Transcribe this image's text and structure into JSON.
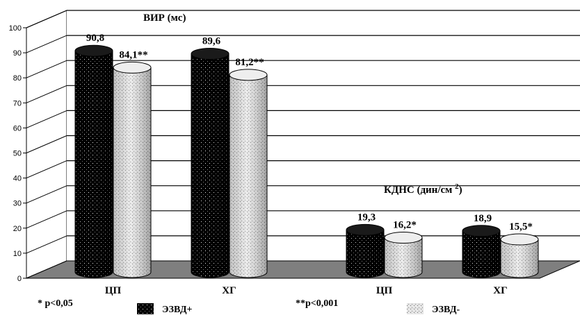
{
  "chart_data": {
    "type": "bar",
    "style": "3d-cylinder",
    "ylim": [
      0,
      100
    ],
    "yticks": [
      0,
      10,
      20,
      30,
      40,
      50,
      60,
      70,
      80,
      90,
      100
    ],
    "grid": true,
    "groups": [
      {
        "title": "ВИР (мс)"
      },
      {
        "title": "КДНС (дин/см",
        "title_sup": "2",
        "title_end": ")"
      }
    ],
    "categories": [
      "ЦП",
      "ХГ",
      "ЦП",
      "ХГ"
    ],
    "series": [
      {
        "name": "ЭЗВД+",
        "values": [
          90.8,
          89.6,
          19.3,
          18.9
        ],
        "labels": [
          "90,8",
          "89,6",
          "19,3",
          "18,9"
        ],
        "color": "#000000"
      },
      {
        "name": "ЭЗВД-",
        "values": [
          84.1,
          81.2,
          16.2,
          15.5
        ],
        "labels": [
          "84,1**",
          "81,2**",
          "16,2*",
          "15,5*"
        ],
        "color": "#d9d9d9"
      }
    ],
    "notes": [
      "* p<0,05",
      "**p<0,001"
    ]
  }
}
